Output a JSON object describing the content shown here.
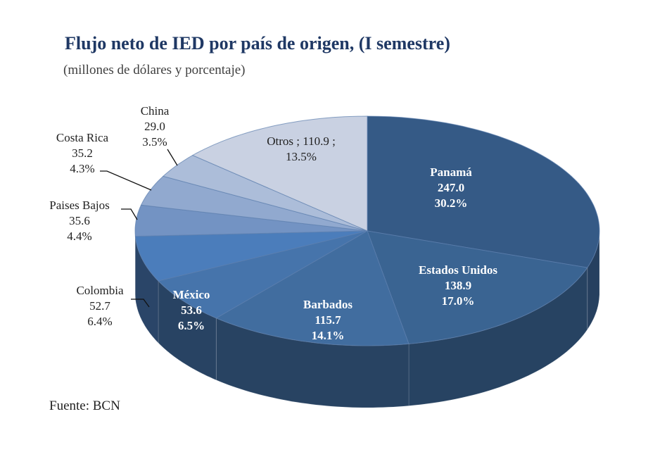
{
  "chart_data": {
    "type": "pie",
    "style": "3d",
    "title": "Flujo neto de IED por país de origen, (I semestre)",
    "subtitle": "(millones de dólares y porcentaje)",
    "source": "Fuente: BCN",
    "slices": [
      {
        "name": "Panamá",
        "value": 247.0,
        "value_label": "247.0",
        "percent_label": "30.2%",
        "color": "#355a86",
        "label_style": "inside"
      },
      {
        "name": "Estados Unidos",
        "value": 138.9,
        "value_label": "138.9",
        "percent_label": "17.0%",
        "color": "#3a6492",
        "label_style": "inside"
      },
      {
        "name": "Barbados",
        "value": 115.7,
        "value_label": "115.7",
        "percent_label": "14.1%",
        "color": "#416d9f",
        "label_style": "inside"
      },
      {
        "name": "México",
        "value": 53.6,
        "value_label": "53.6",
        "percent_label": "6.5%",
        "color": "#4674ab",
        "label_style": "inside"
      },
      {
        "name": "Colombia",
        "value": 52.7,
        "value_label": "52.7",
        "percent_label": "6.4%",
        "color": "#4b7dbb",
        "label_style": "outside"
      },
      {
        "name": "Paises Bajos",
        "value": 35.6,
        "value_label": "35.6",
        "percent_label": "4.4%",
        "color": "#7393c3",
        "label_style": "outside"
      },
      {
        "name": "Costa Rica",
        "value": 35.2,
        "value_label": "35.2",
        "percent_label": "4.3%",
        "color": "#91a9cf",
        "label_style": "outside"
      },
      {
        "name": "China",
        "value": 29.0,
        "value_label": "29.0",
        "percent_label": "3.5%",
        "color": "#acbdd9",
        "label_style": "outside"
      },
      {
        "name": "Otros",
        "value": 110.9,
        "value_label": "110.9",
        "percent_label": "13.5%",
        "color": "#c9d1e2",
        "label_style": "inside-inline"
      }
    ]
  }
}
